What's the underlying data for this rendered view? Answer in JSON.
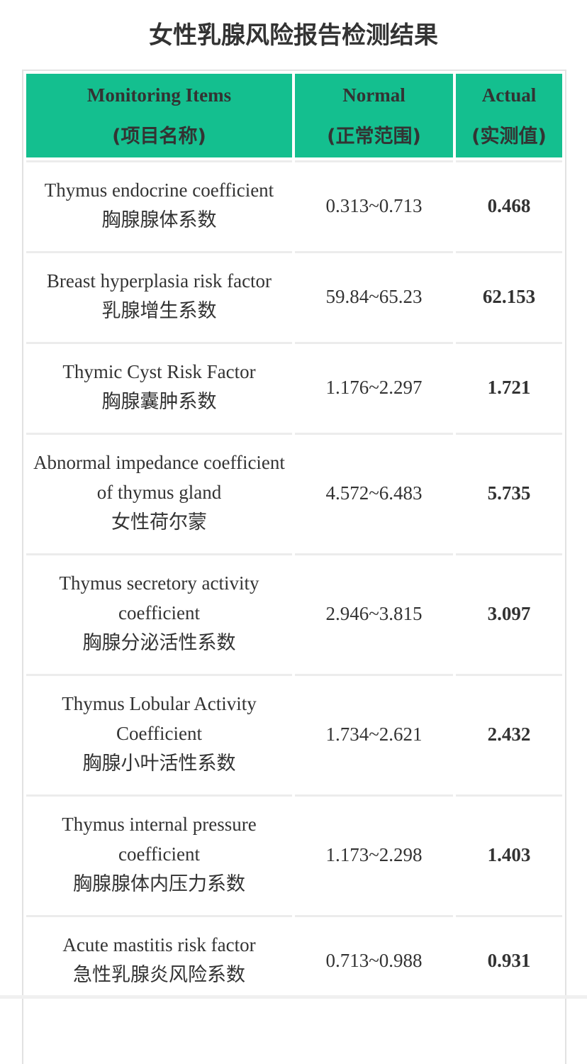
{
  "title": "女性乳腺风险报告检测结果",
  "table": {
    "headers": [
      {
        "en": "Monitoring Items",
        "zh": "(项目名称)"
      },
      {
        "en": "Normal",
        "zh": "(正常范围)"
      },
      {
        "en": "Actual",
        "zh": "(实测值)"
      }
    ],
    "rows": [
      {
        "en": "Thymus endocrine coefficient",
        "zh": "胸腺腺体系数",
        "range": "0.313~0.713",
        "actual": "0.468"
      },
      {
        "en": "Breast hyperplasia risk factor",
        "zh": "乳腺增生系数",
        "range": "59.84~65.23",
        "actual": "62.153"
      },
      {
        "en": "Thymic Cyst Risk Factor",
        "zh": "胸腺囊肿系数",
        "range": "1.176~2.297",
        "actual": "1.721"
      },
      {
        "en": "Abnormal impedance coefficient of thymus gland",
        "zh": "女性荷尔蒙",
        "range": "4.572~6.483",
        "actual": "5.735"
      },
      {
        "en": "Thymus secretory activity coefficient",
        "zh": "胸腺分泌活性系数",
        "range": "2.946~3.815",
        "actual": "3.097"
      },
      {
        "en": "Thymus Lobular Activity Coefficient",
        "zh": "胸腺小叶活性系数",
        "range": "1.734~2.621",
        "actual": "2.432"
      },
      {
        "en": "Thymus internal pressure coefficient",
        "zh": "胸腺腺体内压力系数",
        "range": "1.173~2.298",
        "actual": "1.403"
      },
      {
        "en": "Acute mastitis risk factor",
        "zh": "急性乳腺炎风险系数",
        "range": "0.713~0.988",
        "actual": "0.931"
      }
    ]
  },
  "colors": {
    "header_bg": "#14bf8f",
    "text": "#333333",
    "border": "#e2e2e2"
  }
}
